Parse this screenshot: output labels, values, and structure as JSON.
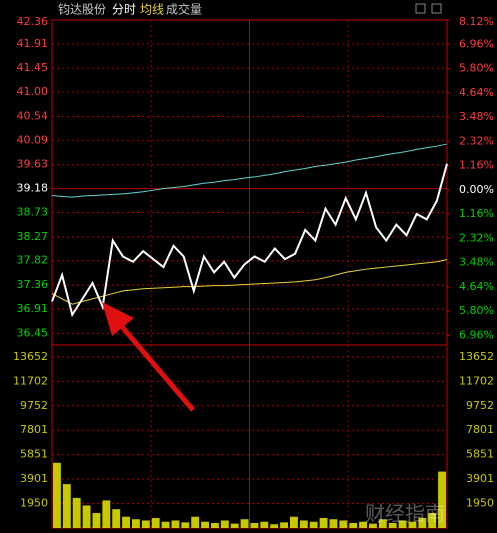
{
  "header": {
    "title": "钧达股份",
    "tabs": [
      "分时",
      "均线",
      "成交量"
    ]
  },
  "watermark": "财经指南",
  "chart_data": [
    {
      "type": "line",
      "ylim": [
        36.23,
        42.36
      ],
      "yticks": [
        {
          "value": 42.36,
          "label": "42.36"
        },
        41.91,
        41.45,
        {
          "value": 41.0,
          "label": "41.00"
        },
        40.54,
        40.09,
        39.63,
        39.18,
        38.73,
        38.27,
        37.82,
        37.36,
        36.91,
        36.45
      ],
      "y2lim": [
        -7.42,
        8.12
      ],
      "y2ticks": [
        {
          "value": 8.12,
          "label": "8.12%"
        },
        {
          "value": 6.96,
          "label": "6.96%"
        },
        {
          "value": 5.8,
          "label": "5.80%"
        },
        {
          "value": 4.64,
          "label": "4.64%"
        },
        {
          "value": 3.48,
          "label": "3.48%"
        },
        {
          "value": 2.32,
          "label": "2.32%"
        },
        {
          "value": 1.16,
          "label": "1.16%"
        },
        {
          "value": 0,
          "label": "0.00%"
        },
        {
          "value": -1.16,
          "label": "1.16%"
        },
        {
          "value": -2.32,
          "label": "2.32%"
        },
        {
          "value": -3.48,
          "label": "3.48%"
        },
        {
          "value": -4.64,
          "label": "4.64%"
        },
        {
          "value": -5.8,
          "label": "5.80%"
        },
        {
          "value": -6.96,
          "label": "6.96%"
        }
      ],
      "up_color": "#ff3c3c",
      "down_color": "#00d200",
      "flat_color": "#ffffff",
      "grid": true,
      "series": [
        {
          "color": "#5fd3d3",
          "values": [
            39.05,
            39.03,
            39.02,
            39.04,
            39.05,
            39.06,
            39.07,
            39.08,
            39.1,
            39.12,
            39.15,
            39.18,
            39.2,
            39.22,
            39.25,
            39.28,
            39.3,
            39.33,
            39.35,
            39.38,
            39.4,
            39.43,
            39.46,
            39.5,
            39.53,
            39.56,
            39.6,
            39.62,
            39.65,
            39.68,
            39.72,
            39.75,
            39.78,
            39.82,
            39.85,
            39.88,
            39.92,
            39.95,
            39.98,
            40.02
          ]
        },
        {
          "name": "均线",
          "color": "#e6d23c",
          "values": [
            37.2,
            37.1,
            37.0,
            37.05,
            37.1,
            37.15,
            37.2,
            37.25,
            37.27,
            37.29,
            37.3,
            37.31,
            37.32,
            37.33,
            37.33,
            37.34,
            37.35,
            37.35,
            37.36,
            37.37,
            37.38,
            37.39,
            37.4,
            37.41,
            37.42,
            37.44,
            37.46,
            37.5,
            37.55,
            37.6,
            37.63,
            37.66,
            37.68,
            37.7,
            37.72,
            37.74,
            37.76,
            37.78,
            37.8,
            37.84
          ]
        },
        {
          "color": "#ffffff",
          "values": [
            37.05,
            37.55,
            36.8,
            37.1,
            37.4,
            36.95,
            38.2,
            37.9,
            37.8,
            38.0,
            37.85,
            37.7,
            38.1,
            37.9,
            37.25,
            37.9,
            37.6,
            37.8,
            37.5,
            37.75,
            37.9,
            37.8,
            38.05,
            37.85,
            37.95,
            38.4,
            38.2,
            38.8,
            38.5,
            39.0,
            38.6,
            39.1,
            38.45,
            38.2,
            38.5,
            38.3,
            38.7,
            38.6,
            38.95,
            39.65
          ]
        }
      ]
    },
    {
      "type": "bar",
      "ylim": [
        0,
        14600
      ],
      "yticks": [
        13652,
        11702,
        9752,
        7801,
        5851,
        3901,
        1950
      ],
      "color": "#c8c800",
      "grid": true,
      "values": [
        5200,
        3500,
        2400,
        1800,
        1200,
        2200,
        1500,
        900,
        700,
        600,
        800,
        500,
        600,
        450,
        900,
        500,
        400,
        600,
        350,
        700,
        400,
        500,
        300,
        450,
        900,
        600,
        500,
        800,
        700,
        600,
        400,
        500,
        350,
        700,
        400,
        600,
        500,
        800,
        1200,
        4500
      ]
    }
  ]
}
